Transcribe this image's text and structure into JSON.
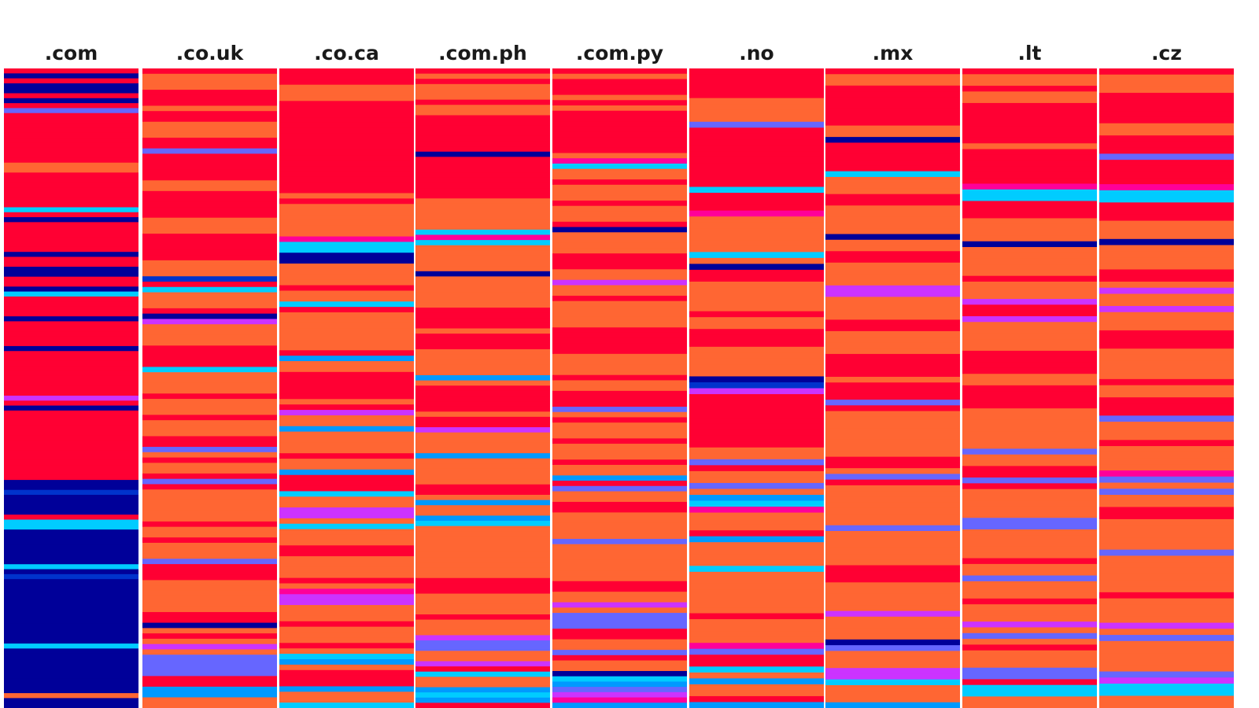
{
  "palette": {
    "R": "#ff0033",
    "O": "#ff6633",
    "N": "#000099",
    "B": "#0033cc",
    "C": "#00ccff",
    "A": "#0099ff",
    "P": "#6666ff",
    "M": "#cc33ff",
    "K": "#ff0099"
  },
  "chart_data": {
    "type": "heatmap",
    "title": "",
    "xlabel": "",
    "ylabel": "",
    "columns": [
      {
        "label": ".com",
        "bands": "RNRNNRNRPRRRRRRRRRROORRRRRRRCRNRRRRRRNRRNNRRNCRRRRNRRRRRNRRRRRRRRRMRNRRRRRRRRRRRRRRNNBNNNNRCCNNNNNNNCNBNNNNNNNNNNNNNCNNNNNNNNNONN"
      },
      {
        "label": ".co.uk",
        "bands": "ROOORRRORROOORRPRRRRROORRRRROOORRRRROOOBRCOOORNMOOOORRRRCOOOOROOOROOORRPOROORPROOOOOOROOROOOPRRROOOOOORRNOROMOPPPPRRAAOO"
      },
      {
        "label": ".co.ca",
        "bands": "RRROOORRRRRRRRRRRRRRRRROROOOOOOKCCNNOOOOROOCROOOOOOORAOORRRRRORMOOAOOOOROOARRRCOOMMOCOOORROOOOROKMMOOOROOOROCAORRRAOOC"
      },
      {
        "label": ".com.ph",
        "bands": "ROROOOROORRRRRRRNRRRRRRRROOOOOOCKCOOOOONOOOOOORRRRORRROOOOOAORRRRRORRMOOOOAOOOOORROAOOACOOOOOOOOOORRROOOOROOOMPPOOMRCOOACAR"
      },
      {
        "label": ".com.py",
        "bands": "RORRRORORRRRRRRROKCOOROOOROOORNOOOORRROOMOOROOOOORRRRROOOOROORRRPOROOOROOOROOARPOORROOOOOPOOOOOOORROOMOPPPRROOPROONCAPMKA"
      },
      {
        "label": ".no",
        "bands": "RRRRROOOOPRRRRRRRRRRCRRRKOOOOOOCONRROOOOOROORRROOOOONBMRRRRRRRRROOPROOPOACKOOORAOOOOCOOOOOOOROOOOKPRRCOAOORA"
      },
      {
        "label": ".mx",
        "bands": "ROORRRRRRROONRRRRRCOOORROOOOONOORROOOOMMOOOORROOOORRRRORRRPROOOOOOOORROPROOOOOOOPOOOOOORRROOOOOMOOOONPOOOMMCOOOA"
      },
      {
        "label": ".lt",
        "bands": "ROOROORRRRRRRORRRRRRKCCRRROOOONOOOOOROOOMRRMOOOOORRRROORRRROOOOOOOPOORRPROOOOOPPOOOOOROOPOOOROOOMOPOROOOPPRCCOO"
      },
      {
        "label": ".cz",
        "bands": "ROOORRRRROORRRPRRRRKCCRRROOONOOOORROMOOMOOORRROOOOOROORRRPOOOROOOOKPOPOORROOOOOPOOOOOOROOOOMOPOOOOOPMCCOO"
      }
    ]
  }
}
